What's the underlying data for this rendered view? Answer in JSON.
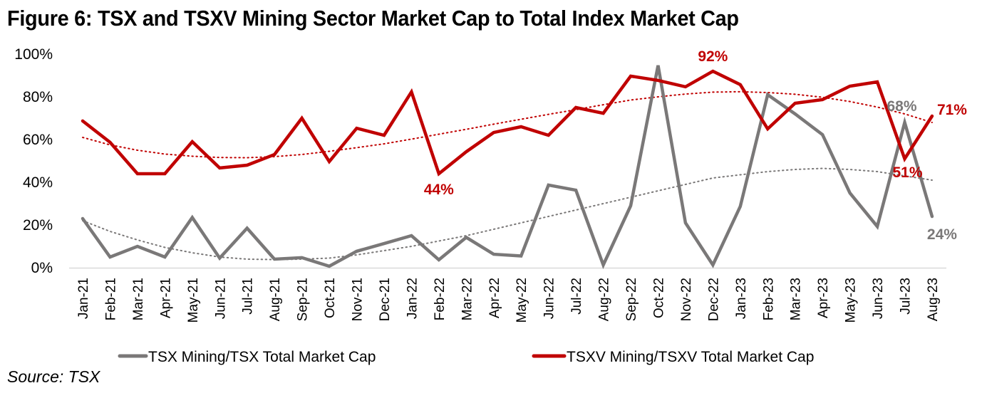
{
  "title": "Figure 6: TSX and TSXV Mining Sector Market Cap to Total Index Market Cap",
  "source": "Source: TSX",
  "colors": {
    "tsx": "#7a7878",
    "tsxv": "#c00000",
    "axis": "#d9d9d9"
  },
  "chart_data": {
    "type": "line",
    "title": "Figure 6: TSX and TSXV Mining Sector Market Cap to Total Index Market Cap",
    "xlabel": "",
    "ylabel": "",
    "ylim": [
      0,
      100
    ],
    "yticks": [
      "0%",
      "20%",
      "40%",
      "60%",
      "80%",
      "100%"
    ],
    "ytick_values": [
      0,
      20,
      40,
      60,
      80,
      100
    ],
    "grid": false,
    "legend_position": "bottom",
    "categories": [
      "Jan-21",
      "Feb-21",
      "Mar-21",
      "Apr-21",
      "May-21",
      "Jun-21",
      "Jul-21",
      "Aug-21",
      "Sep-21",
      "Oct-21",
      "Nov-21",
      "Dec-21",
      "Jan-22",
      "Feb-22",
      "Mar-22",
      "Apr-22",
      "May-22",
      "Jun-22",
      "Jul-22",
      "Aug-22",
      "Sep-22",
      "Oct-22",
      "Nov-22",
      "Dec-22",
      "Jan-23",
      "Feb-23",
      "Mar-23",
      "Apr-23",
      "May-23",
      "Jun-23",
      "Jul-23",
      "Aug-23"
    ],
    "series": [
      {
        "name": "TSX Mining/TSX Total Market Cap",
        "color": "#7a7878",
        "values": [
          23,
          5,
          10,
          5,
          23.5,
          4.5,
          18.5,
          4,
          4.7,
          0.7,
          7.7,
          11.3,
          15,
          3.7,
          14.2,
          6.3,
          5.5,
          38.7,
          36.3,
          1.3,
          29,
          94.7,
          21,
          1.3,
          28.7,
          81,
          72,
          62.3,
          35,
          19.3,
          68,
          24
        ],
        "trendline": [
          22,
          17,
          13,
          9.5,
          7,
          5,
          4,
          3.8,
          4,
          4.5,
          6,
          8,
          10,
          12.5,
          15,
          18,
          21,
          24,
          27,
          30,
          33,
          36,
          39,
          42,
          43.5,
          45,
          46,
          46.5,
          46,
          45,
          43,
          41
        ]
      },
      {
        "name": "TSXV Mining/TSXV Total Market Cap",
        "color": "#c00000",
        "values": [
          68.7,
          58.7,
          44,
          44,
          59,
          46.7,
          48,
          53,
          70,
          49.7,
          65.3,
          62,
          82.3,
          44,
          54.3,
          63.3,
          66,
          62,
          75,
          72.3,
          89.7,
          87.7,
          84.7,
          92,
          85.7,
          65,
          77,
          78.7,
          85,
          87,
          51,
          71
        ],
        "trendline": [
          61,
          57.5,
          55,
          53.2,
          52.2,
          51.6,
          51.5,
          52,
          53,
          54.5,
          56.2,
          58,
          60.2,
          62.5,
          64.8,
          67.2,
          69.5,
          71.8,
          74,
          76.3,
          78.5,
          80,
          81.3,
          82.2,
          82.4,
          82,
          81.2,
          79.8,
          77.8,
          75.2,
          72,
          68
        ]
      }
    ],
    "annotations": [
      {
        "series": 1,
        "category": "Feb-22",
        "label": "44%",
        "position": "below"
      },
      {
        "series": 1,
        "category": "Dec-22",
        "label": "92%",
        "position": "above"
      },
      {
        "series": 1,
        "category": "Jul-23",
        "label": "51%",
        "position": "below"
      },
      {
        "series": 1,
        "category": "Aug-23",
        "label": "71%",
        "position": "right"
      },
      {
        "series": 0,
        "category": "Jul-23",
        "label": "68%",
        "position": "above"
      },
      {
        "series": 0,
        "category": "Aug-23",
        "label": "24%",
        "position": "below"
      }
    ]
  }
}
